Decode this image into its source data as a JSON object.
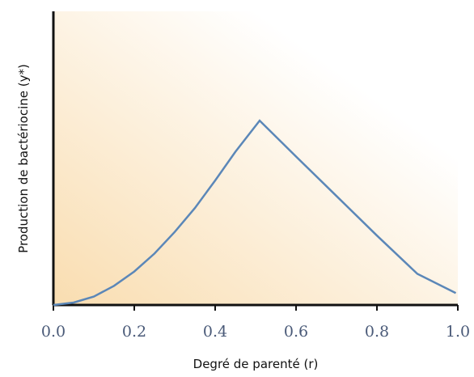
{
  "chart_data": {
    "type": "line",
    "title": "",
    "xlabel": "Degré de parenté (r)",
    "ylabel": "Production de bactériocine (y*)",
    "xlim": [
      0,
      1
    ],
    "ylim": [
      0,
      1
    ],
    "xticks": [
      "0.0",
      "0.2",
      "0.4",
      "0.6",
      "0.8",
      "1.0"
    ],
    "yticks": [],
    "grid": false,
    "legend": "none",
    "background_gradient": [
      "#f9ddb0",
      "#ffffff"
    ],
    "line_color": "#5b87b8",
    "series": [
      {
        "x": [
          0.0,
          0.05,
          0.1,
          0.15,
          0.2,
          0.25,
          0.3,
          0.35,
          0.4,
          0.45,
          0.51,
          0.6,
          0.7,
          0.8,
          0.9,
          0.995
        ],
        "values": [
          0.0,
          0.01,
          0.035,
          0.08,
          0.14,
          0.215,
          0.305,
          0.405,
          0.52,
          0.64,
          0.77,
          0.62,
          0.455,
          0.29,
          0.13,
          0.05
        ]
      }
    ]
  }
}
